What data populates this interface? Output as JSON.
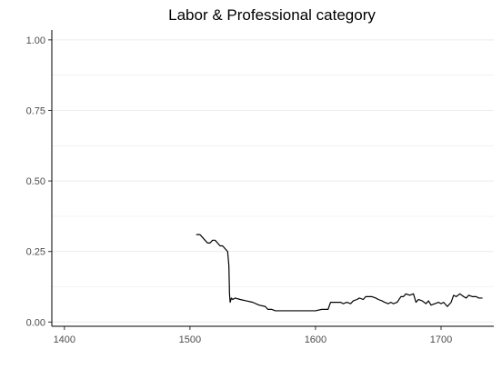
{
  "chart_data": {
    "type": "line",
    "title": "Labor & Professional category",
    "xlabel": "",
    "ylabel": "",
    "xlim": [
      1390,
      1742
    ],
    "ylim": [
      -0.015,
      1.035
    ],
    "x_ticks": [
      1400,
      1500,
      1600,
      1700
    ],
    "y_ticks": [
      0.0,
      0.25,
      0.5,
      0.75,
      1.0
    ],
    "y_tick_labels": [
      "0.00",
      "0.25",
      "0.50",
      "0.75",
      "1.00"
    ],
    "x_tick_labels": [
      "1400",
      "1500",
      "1600",
      "1700"
    ],
    "grid": "horizontal-major-and-minor",
    "colors": {
      "line": "#000000",
      "grid": "#ebebeb",
      "axis": "#000000",
      "tick_text": "#4d4d4d"
    },
    "series": [
      {
        "x": [
          1505,
          1508,
          1510,
          1512,
          1514,
          1516,
          1518,
          1520,
          1522,
          1524,
          1526,
          1528,
          1530,
          1531,
          1531.5,
          1532,
          1533,
          1534,
          1536,
          1540,
          1545,
          1550,
          1555,
          1560,
          1562,
          1565,
          1568,
          1570,
          1575,
          1580,
          1585,
          1590,
          1595,
          1600,
          1605,
          1610,
          1612,
          1615,
          1620,
          1622,
          1625,
          1628,
          1630,
          1633,
          1635,
          1638,
          1640,
          1645,
          1648,
          1650,
          1653,
          1655,
          1658,
          1660,
          1662,
          1665,
          1668,
          1670,
          1672,
          1675,
          1678,
          1680,
          1682,
          1685,
          1688,
          1690,
          1692,
          1695,
          1698,
          1700,
          1702,
          1705,
          1708,
          1710,
          1712,
          1715,
          1718,
          1720,
          1722,
          1725,
          1728,
          1730,
          1733
        ],
        "y": [
          0.31,
          0.31,
          0.3,
          0.29,
          0.28,
          0.28,
          0.29,
          0.29,
          0.28,
          0.27,
          0.27,
          0.26,
          0.25,
          0.2,
          0.1,
          0.07,
          0.085,
          0.08,
          0.085,
          0.08,
          0.075,
          0.07,
          0.06,
          0.055,
          0.045,
          0.045,
          0.04,
          0.04,
          0.04,
          0.04,
          0.04,
          0.04,
          0.04,
          0.04,
          0.045,
          0.045,
          0.07,
          0.07,
          0.07,
          0.065,
          0.07,
          0.065,
          0.075,
          0.08,
          0.085,
          0.08,
          0.09,
          0.09,
          0.085,
          0.08,
          0.075,
          0.07,
          0.065,
          0.07,
          0.065,
          0.07,
          0.09,
          0.09,
          0.1,
          0.095,
          0.1,
          0.07,
          0.08,
          0.075,
          0.065,
          0.075,
          0.06,
          0.065,
          0.07,
          0.065,
          0.07,
          0.055,
          0.07,
          0.095,
          0.09,
          0.1,
          0.09,
          0.085,
          0.095,
          0.09,
          0.09,
          0.085,
          0.085
        ]
      }
    ]
  }
}
